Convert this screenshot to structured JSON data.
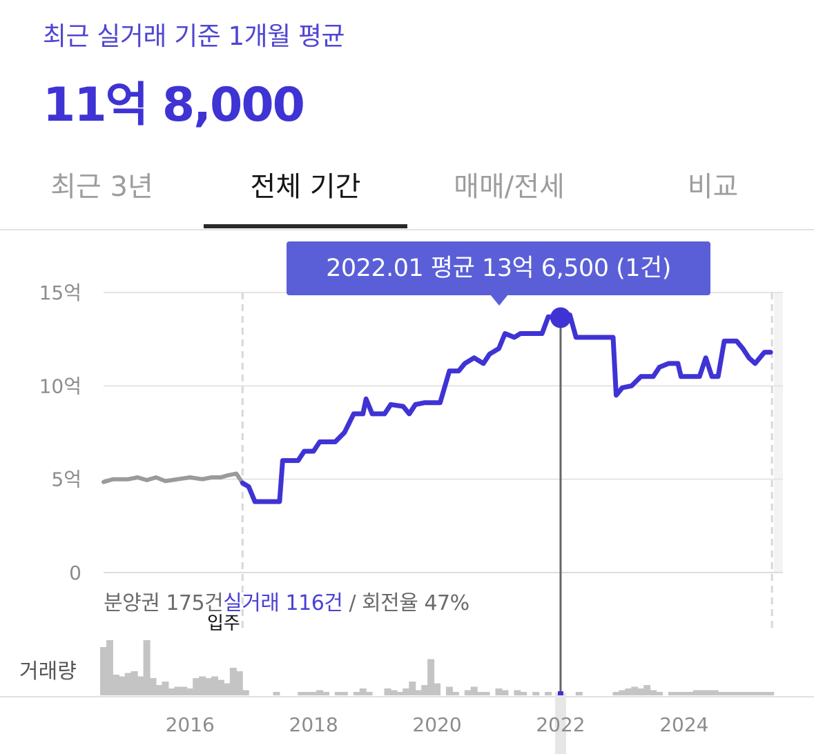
{
  "header": {
    "subtitle": "최근 실거래 기준 1개월 평균",
    "price": "11억 8,000"
  },
  "tabs": [
    {
      "label": "최근 3년",
      "active": false
    },
    {
      "label": "전체 기간",
      "active": true
    },
    {
      "label": "매매/전세",
      "active": false
    },
    {
      "label": "비교",
      "active": false
    }
  ],
  "tooltip": {
    "text": "2022.01 평균 13억 6,500 (1건)"
  },
  "stats": {
    "presale": "분양권 175건",
    "trades": "실거래 116건",
    "turnover": " / 회전율 47%"
  },
  "move_in_label": "입주",
  "volume_label": "거래량",
  "colors": {
    "accent": "#3f33d4",
    "line": "#3f33d4",
    "presale_line": "#9a9a9a",
    "tooltip_bg": "#5a5fd8",
    "future_shade": "#f3f3f3"
  },
  "chart_data": {
    "type": "line",
    "title": "",
    "xlabel": "",
    "ylabel": "",
    "x_ticks": [
      "2016",
      "2018",
      "2020",
      "2022",
      "2024"
    ],
    "y_ticks": [
      {
        "value": 0,
        "label": "0"
      },
      {
        "value": 5,
        "label": "5억"
      },
      {
        "value": 10,
        "label": "10억"
      },
      {
        "value": 15,
        "label": "15억"
      }
    ],
    "xlim": [
      2014.6,
      2025.6
    ],
    "ylim": [
      0,
      15
    ],
    "grid": true,
    "move_in_date": 2016.85,
    "selected": {
      "x": 2022.0,
      "y": 13.65
    },
    "series": [
      {
        "name": "분양권",
        "points": [
          [
            2014.6,
            4.85
          ],
          [
            2014.75,
            5.0
          ],
          [
            2014.9,
            5.0
          ],
          [
            2015.0,
            5.0
          ],
          [
            2015.15,
            5.1
          ],
          [
            2015.3,
            4.95
          ],
          [
            2015.45,
            5.1
          ],
          [
            2015.6,
            4.9
          ],
          [
            2015.8,
            5.0
          ],
          [
            2016.0,
            5.1
          ],
          [
            2016.2,
            5.0
          ],
          [
            2016.35,
            5.1
          ],
          [
            2016.5,
            5.1
          ],
          [
            2016.6,
            5.2
          ],
          [
            2016.75,
            5.3
          ],
          [
            2016.85,
            4.8
          ]
        ]
      },
      {
        "name": "실거래",
        "points": [
          [
            2016.85,
            4.8
          ],
          [
            2016.95,
            4.6
          ],
          [
            2017.05,
            3.8
          ],
          [
            2017.25,
            3.8
          ],
          [
            2017.45,
            3.8
          ],
          [
            2017.5,
            6.0
          ],
          [
            2017.75,
            6.0
          ],
          [
            2017.85,
            6.5
          ],
          [
            2018.0,
            6.5
          ],
          [
            2018.1,
            7.0
          ],
          [
            2018.35,
            7.0
          ],
          [
            2018.5,
            7.5
          ],
          [
            2018.65,
            8.5
          ],
          [
            2018.8,
            8.5
          ],
          [
            2018.85,
            9.3
          ],
          [
            2018.95,
            8.5
          ],
          [
            2019.15,
            8.5
          ],
          [
            2019.25,
            9.0
          ],
          [
            2019.45,
            8.9
          ],
          [
            2019.55,
            8.5
          ],
          [
            2019.65,
            9.0
          ],
          [
            2019.8,
            9.1
          ],
          [
            2020.05,
            9.1
          ],
          [
            2020.2,
            10.8
          ],
          [
            2020.35,
            10.8
          ],
          [
            2020.45,
            11.2
          ],
          [
            2020.6,
            11.5
          ],
          [
            2020.75,
            11.2
          ],
          [
            2020.85,
            11.7
          ],
          [
            2021.0,
            12.0
          ],
          [
            2021.1,
            12.8
          ],
          [
            2021.25,
            12.6
          ],
          [
            2021.35,
            12.8
          ],
          [
            2021.7,
            12.8
          ],
          [
            2021.8,
            13.7
          ],
          [
            2022.0,
            13.65
          ],
          [
            2022.15,
            13.8
          ],
          [
            2022.25,
            12.6
          ],
          [
            2022.45,
            12.6
          ],
          [
            2022.6,
            12.6
          ],
          [
            2022.85,
            12.6
          ],
          [
            2022.9,
            9.5
          ],
          [
            2023.0,
            9.9
          ],
          [
            2023.15,
            10.0
          ],
          [
            2023.3,
            10.5
          ],
          [
            2023.5,
            10.5
          ],
          [
            2023.6,
            11.0
          ],
          [
            2023.75,
            11.2
          ],
          [
            2023.9,
            11.2
          ],
          [
            2023.95,
            10.5
          ],
          [
            2024.1,
            10.5
          ],
          [
            2024.25,
            10.5
          ],
          [
            2024.35,
            11.5
          ],
          [
            2024.45,
            10.5
          ],
          [
            2024.55,
            10.5
          ],
          [
            2024.65,
            12.4
          ],
          [
            2024.85,
            12.4
          ],
          [
            2024.95,
            12.0
          ],
          [
            2025.05,
            11.5
          ],
          [
            2025.15,
            11.2
          ],
          [
            2025.3,
            11.8
          ],
          [
            2025.4,
            11.8
          ]
        ]
      }
    ],
    "volume": {
      "label": "거래량",
      "bars": [
        [
          2014.6,
          2.8
        ],
        [
          2014.7,
          3.2
        ],
        [
          2014.8,
          1.2
        ],
        [
          2014.9,
          1.1
        ],
        [
          2015.0,
          1.3
        ],
        [
          2015.1,
          1.4
        ],
        [
          2015.2,
          1.1
        ],
        [
          2015.3,
          3.2
        ],
        [
          2015.4,
          1.0
        ],
        [
          2015.5,
          0.6
        ],
        [
          2015.6,
          0.8
        ],
        [
          2015.7,
          0.4
        ],
        [
          2015.8,
          0.5
        ],
        [
          2015.9,
          0.5
        ],
        [
          2016.0,
          0.4
        ],
        [
          2016.1,
          1.0
        ],
        [
          2016.2,
          1.1
        ],
        [
          2016.3,
          1.0
        ],
        [
          2016.4,
          1.1
        ],
        [
          2016.5,
          0.9
        ],
        [
          2016.6,
          0.7
        ],
        [
          2016.7,
          1.6
        ],
        [
          2016.8,
          1.4
        ],
        [
          2016.9,
          0.3
        ],
        [
          2017.4,
          0.2
        ],
        [
          2017.8,
          0.2
        ],
        [
          2017.9,
          0.2
        ],
        [
          2018.0,
          0.2
        ],
        [
          2018.1,
          0.3
        ],
        [
          2018.2,
          0.2
        ],
        [
          2018.4,
          0.2
        ],
        [
          2018.5,
          0.2
        ],
        [
          2018.7,
          0.2
        ],
        [
          2018.8,
          0.4
        ],
        [
          2018.9,
          0.2
        ],
        [
          2019.2,
          0.4
        ],
        [
          2019.3,
          0.3
        ],
        [
          2019.4,
          0.2
        ],
        [
          2019.5,
          0.4
        ],
        [
          2019.6,
          0.8
        ],
        [
          2019.7,
          0.3
        ],
        [
          2019.8,
          0.6
        ],
        [
          2019.9,
          2.1
        ],
        [
          2020.0,
          0.7
        ],
        [
          2020.2,
          0.5
        ],
        [
          2020.3,
          0.2
        ],
        [
          2020.5,
          0.3
        ],
        [
          2020.6,
          0.5
        ],
        [
          2020.7,
          0.2
        ],
        [
          2020.8,
          0.2
        ],
        [
          2021.0,
          0.4
        ],
        [
          2021.1,
          0.3
        ],
        [
          2021.3,
          0.3
        ],
        [
          2021.4,
          0.2
        ],
        [
          2021.6,
          0.2
        ],
        [
          2021.8,
          0.2
        ],
        [
          2022.0,
          0.05
        ],
        [
          2022.3,
          0.2
        ],
        [
          2022.9,
          0.2
        ],
        [
          2023.0,
          0.3
        ],
        [
          2023.1,
          0.4
        ],
        [
          2023.2,
          0.5
        ],
        [
          2023.3,
          0.4
        ],
        [
          2023.4,
          0.6
        ],
        [
          2023.5,
          0.3
        ],
        [
          2023.6,
          0.2
        ],
        [
          2023.8,
          0.2
        ],
        [
          2023.9,
          0.2
        ],
        [
          2024.0,
          0.2
        ],
        [
          2024.1,
          0.2
        ],
        [
          2024.2,
          0.3
        ],
        [
          2024.3,
          0.3
        ],
        [
          2024.4,
          0.3
        ],
        [
          2024.5,
          0.3
        ],
        [
          2024.6,
          0.2
        ],
        [
          2024.7,
          0.2
        ],
        [
          2024.8,
          0.2
        ],
        [
          2024.9,
          0.2
        ],
        [
          2025.0,
          0.2
        ],
        [
          2025.1,
          0.2
        ],
        [
          2025.2,
          0.2
        ],
        [
          2025.3,
          0.2
        ],
        [
          2025.4,
          0.2
        ]
      ]
    }
  }
}
